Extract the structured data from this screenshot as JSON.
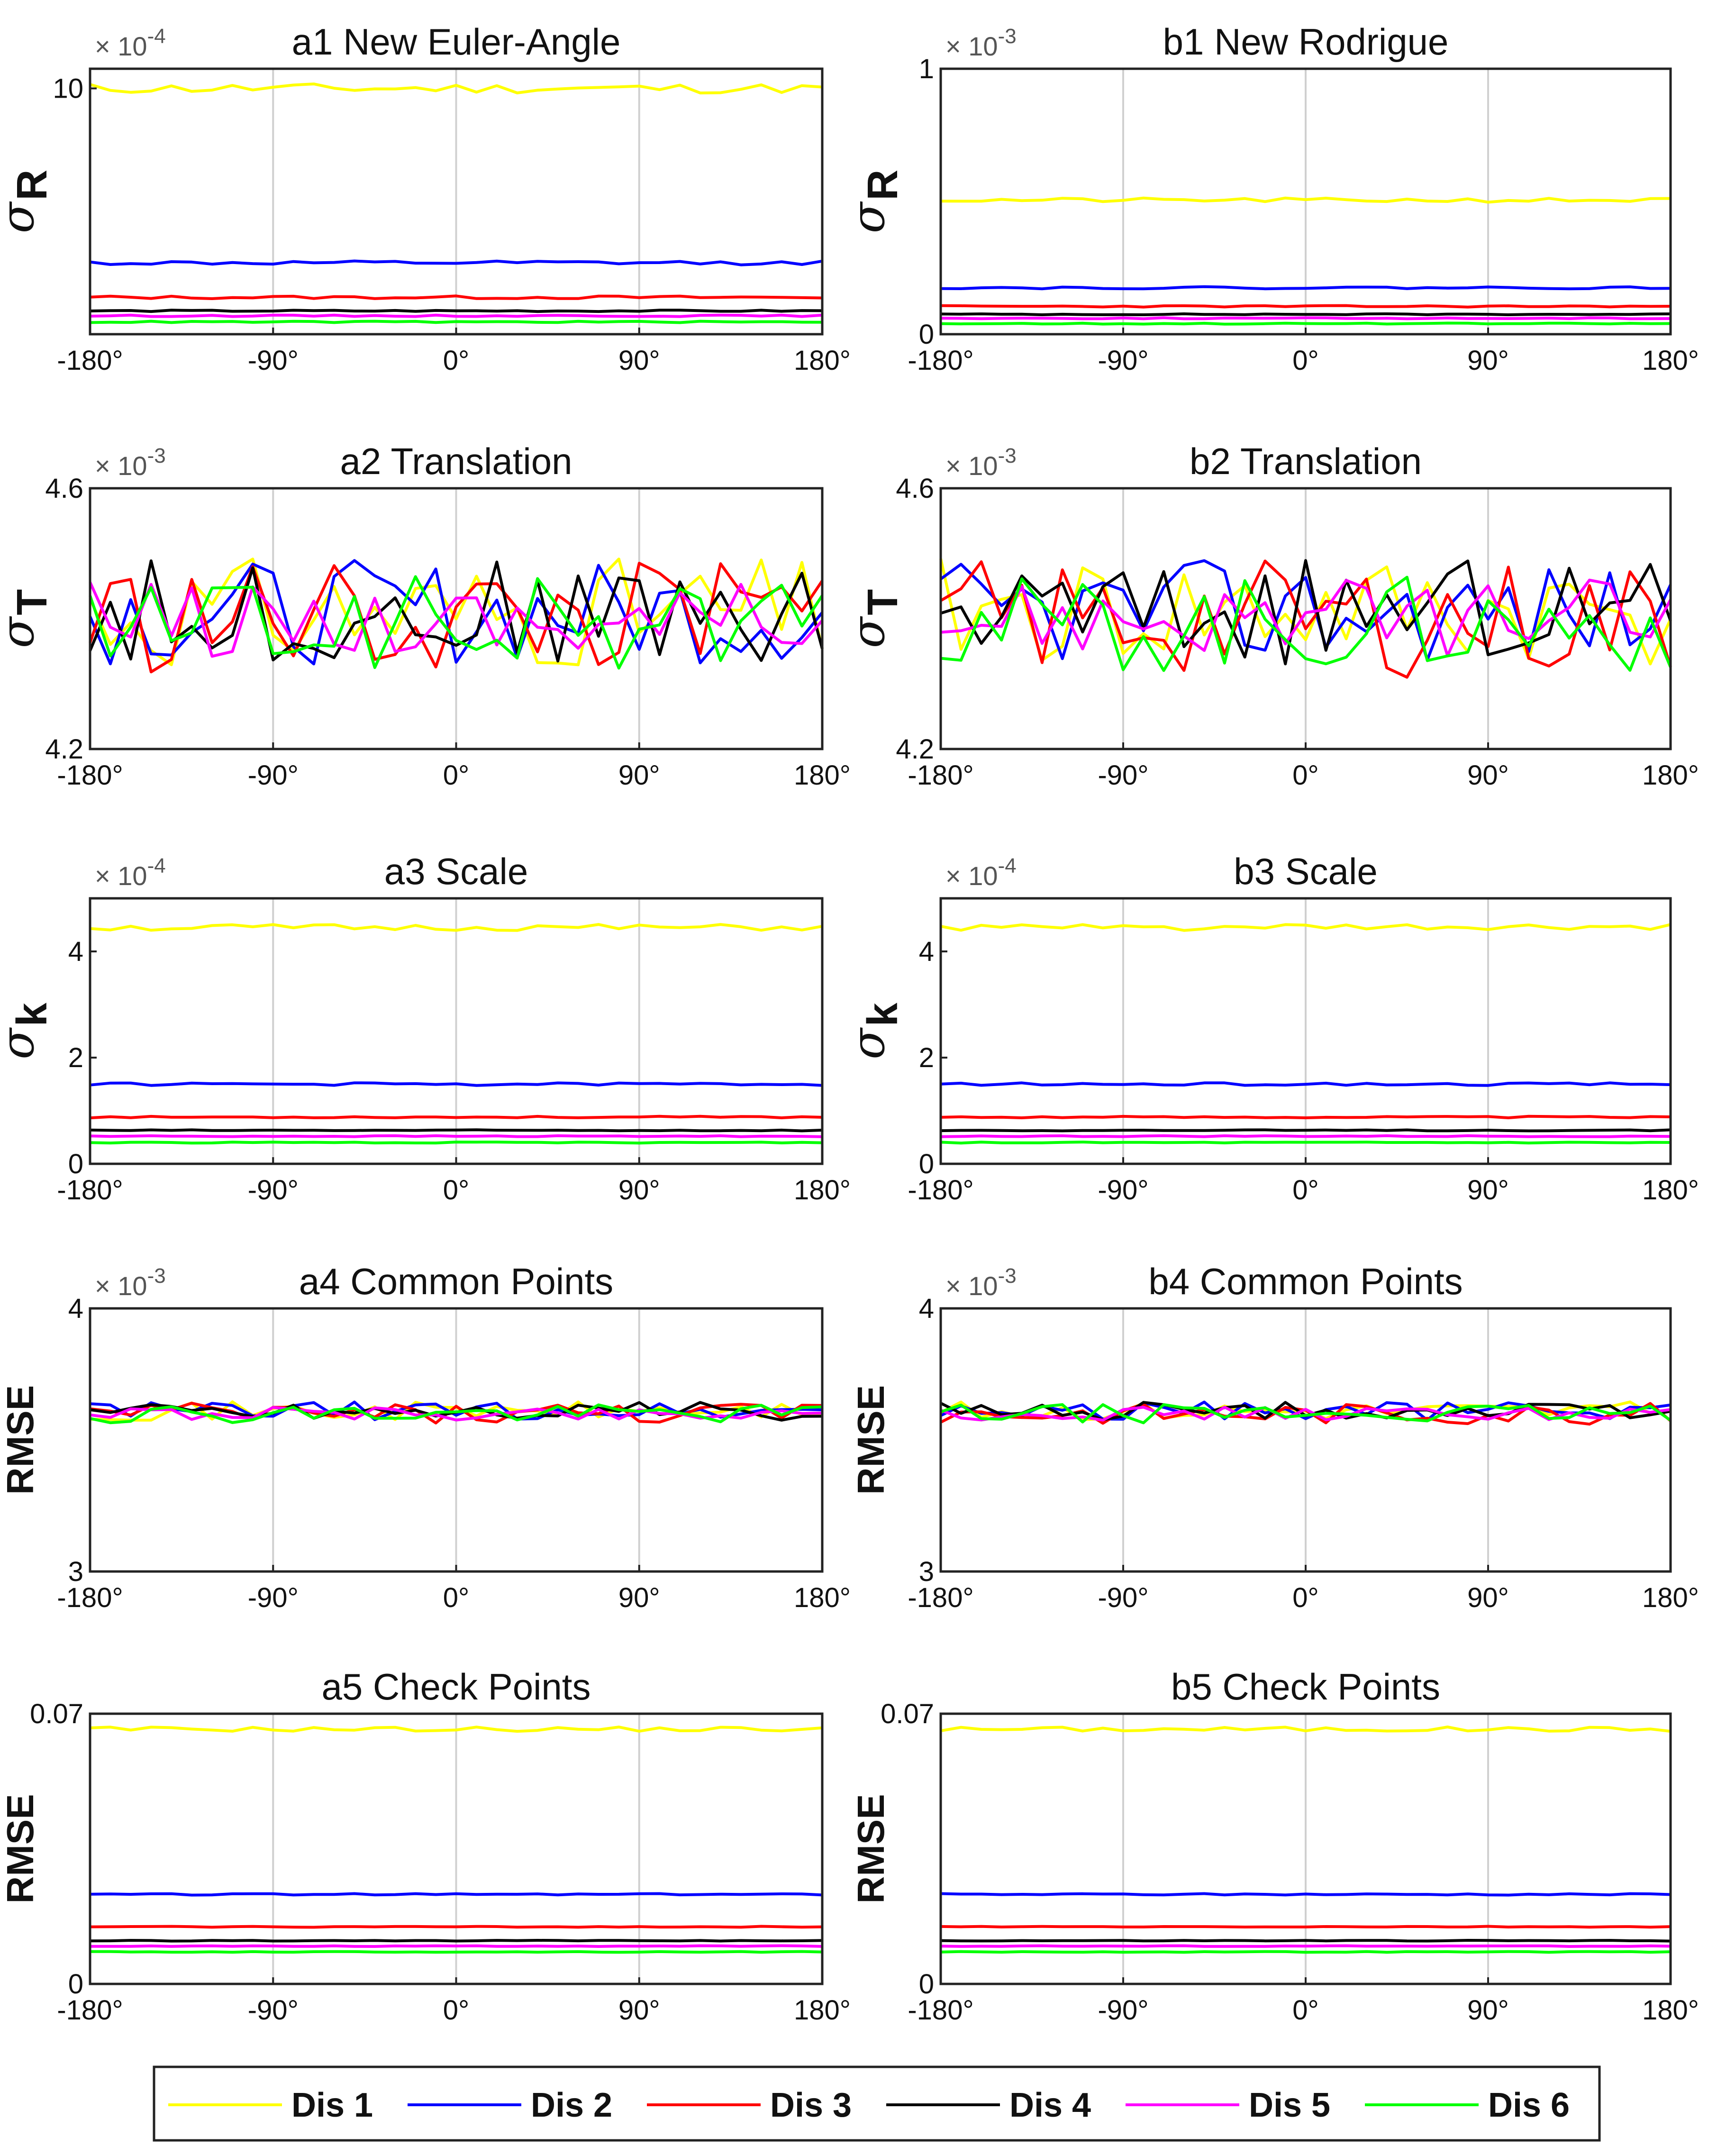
{
  "legend": {
    "items": [
      {
        "label": "Dis 1",
        "color": "#ffff00"
      },
      {
        "label": "Dis 2",
        "color": "#0000ff"
      },
      {
        "label": "Dis 3",
        "color": "#ff0000"
      },
      {
        "label": "Dis 4",
        "color": "#000000"
      },
      {
        "label": "Dis 5",
        "color": "#ff00ff"
      },
      {
        "label": "Dis 6",
        "color": "#00ff00"
      }
    ]
  },
  "chart_data": [
    {
      "id": "a1",
      "type": "line",
      "title": "a1 New Euler-Angle",
      "ylabel": {
        "symbol": "σ",
        "sub": "R"
      },
      "exponent": "× 10^-4",
      "x": [
        -180,
        180
      ],
      "xticks": [
        "-180°",
        "-90°",
        "0°",
        "90°",
        "180°"
      ],
      "ylim": [
        0,
        10.8
      ],
      "yticks": [
        {
          "value": 10,
          "label": "10"
        }
      ],
      "series": [
        {
          "name": "Dis 1",
          "level": 10.0,
          "noise": 0.2,
          "seed": 11
        },
        {
          "name": "Dis 2",
          "level": 2.9,
          "noise": 0.08,
          "seed": 12
        },
        {
          "name": "Dis 3",
          "level": 1.5,
          "noise": 0.06,
          "seed": 13
        },
        {
          "name": "Dis 4",
          "level": 0.95,
          "noise": 0.03,
          "seed": 14
        },
        {
          "name": "Dis 5",
          "level": 0.75,
          "noise": 0.03,
          "seed": 15
        },
        {
          "name": "Dis 6",
          "level": 0.5,
          "noise": 0.03,
          "seed": 16
        }
      ]
    },
    {
      "id": "b1",
      "type": "line",
      "title": "b1 New Rodrigue",
      "ylabel": {
        "symbol": "σ",
        "sub": "R"
      },
      "exponent": "× 10^-3",
      "x": [
        -180,
        180
      ],
      "xticks": [
        "-180°",
        "-90°",
        "0°",
        "90°",
        "180°"
      ],
      "ylim": [
        0,
        1
      ],
      "yticks": [
        {
          "value": 0,
          "label": "0"
        },
        {
          "value": 1,
          "label": "1"
        }
      ],
      "series": [
        {
          "name": "Dis 1",
          "level": 0.505,
          "noise": 0.008,
          "seed": 21
        },
        {
          "name": "Dis 2",
          "level": 0.175,
          "noise": 0.004,
          "seed": 22
        },
        {
          "name": "Dis 3",
          "level": 0.105,
          "noise": 0.003,
          "seed": 23
        },
        {
          "name": "Dis 4",
          "level": 0.075,
          "noise": 0.002,
          "seed": 24
        },
        {
          "name": "Dis 5",
          "level": 0.06,
          "noise": 0.002,
          "seed": 25
        },
        {
          "name": "Dis 6",
          "level": 0.04,
          "noise": 0.002,
          "seed": 26
        }
      ]
    },
    {
      "id": "a2",
      "type": "line",
      "title": "a2 Translation",
      "ylabel": {
        "symbol": "σ",
        "sub": "T"
      },
      "exponent": "× 10^-3",
      "x": [
        -180,
        180
      ],
      "xticks": [
        "-180°",
        "-90°",
        "0°",
        "90°",
        "180°"
      ],
      "ylim": [
        4.2,
        4.6
      ],
      "yticks": [
        {
          "value": 4.2,
          "label": "4.2"
        },
        {
          "value": 4.6,
          "label": "4.6"
        }
      ],
      "series": [
        {
          "name": "Dis 1",
          "level": 4.41,
          "noise": 0.085,
          "seed": 31
        },
        {
          "name": "Dis 2",
          "level": 4.41,
          "noise": 0.08,
          "seed": 32
        },
        {
          "name": "Dis 3",
          "level": 4.4,
          "noise": 0.09,
          "seed": 33
        },
        {
          "name": "Dis 4",
          "level": 4.41,
          "noise": 0.08,
          "seed": 34
        },
        {
          "name": "Dis 5",
          "level": 4.4,
          "noise": 0.06,
          "seed": 35
        },
        {
          "name": "Dis 6",
          "level": 4.39,
          "noise": 0.075,
          "seed": 36
        }
      ]
    },
    {
      "id": "b2",
      "type": "line",
      "title": "b2 Translation",
      "ylabel": {
        "symbol": "σ",
        "sub": "T"
      },
      "exponent": "× 10^-3",
      "x": [
        -180,
        180
      ],
      "xticks": [
        "-180°",
        "-90°",
        "0°",
        "90°",
        "180°"
      ],
      "ylim": [
        4.2,
        4.6
      ],
      "yticks": [
        {
          "value": 4.2,
          "label": "4.2"
        },
        {
          "value": 4.6,
          "label": "4.6"
        }
      ],
      "series": [
        {
          "name": "Dis 1",
          "level": 4.41,
          "noise": 0.085,
          "seed": 41
        },
        {
          "name": "Dis 2",
          "level": 4.41,
          "noise": 0.08,
          "seed": 42
        },
        {
          "name": "Dis 3",
          "level": 4.4,
          "noise": 0.09,
          "seed": 43
        },
        {
          "name": "Dis 4",
          "level": 4.41,
          "noise": 0.08,
          "seed": 44
        },
        {
          "name": "Dis 5",
          "level": 4.4,
          "noise": 0.06,
          "seed": 45
        },
        {
          "name": "Dis 6",
          "level": 4.39,
          "noise": 0.075,
          "seed": 46
        }
      ]
    },
    {
      "id": "a3",
      "type": "line",
      "title": "a3 Scale",
      "ylabel": {
        "symbol": "σ",
        "sub": "k"
      },
      "exponent": "× 10^-4",
      "x": [
        -180,
        180
      ],
      "xticks": [
        "-180°",
        "-90°",
        "0°",
        "90°",
        "180°"
      ],
      "ylim": [
        0,
        5
      ],
      "yticks": [
        {
          "value": 0,
          "label": "0"
        },
        {
          "value": 2,
          "label": "2"
        },
        {
          "value": 4,
          "label": "4"
        }
      ],
      "series": [
        {
          "name": "Dis 1",
          "level": 4.45,
          "noise": 0.06,
          "seed": 51
        },
        {
          "name": "Dis 2",
          "level": 1.5,
          "noise": 0.025,
          "seed": 52
        },
        {
          "name": "Dis 3",
          "level": 0.88,
          "noise": 0.015,
          "seed": 53
        },
        {
          "name": "Dis 4",
          "level": 0.63,
          "noise": 0.01,
          "seed": 54
        },
        {
          "name": "Dis 5",
          "level": 0.52,
          "noise": 0.01,
          "seed": 55
        },
        {
          "name": "Dis 6",
          "level": 0.4,
          "noise": 0.01,
          "seed": 56
        }
      ]
    },
    {
      "id": "b3",
      "type": "line",
      "title": "b3 Scale",
      "ylabel": {
        "symbol": "σ",
        "sub": "k"
      },
      "exponent": "× 10^-4",
      "x": [
        -180,
        180
      ],
      "xticks": [
        "-180°",
        "-90°",
        "0°",
        "90°",
        "180°"
      ],
      "ylim": [
        0,
        5
      ],
      "yticks": [
        {
          "value": 0,
          "label": "0"
        },
        {
          "value": 2,
          "label": "2"
        },
        {
          "value": 4,
          "label": "4"
        }
      ],
      "series": [
        {
          "name": "Dis 1",
          "level": 4.45,
          "noise": 0.06,
          "seed": 61
        },
        {
          "name": "Dis 2",
          "level": 1.5,
          "noise": 0.025,
          "seed": 62
        },
        {
          "name": "Dis 3",
          "level": 0.88,
          "noise": 0.015,
          "seed": 63
        },
        {
          "name": "Dis 4",
          "level": 0.63,
          "noise": 0.01,
          "seed": 64
        },
        {
          "name": "Dis 5",
          "level": 0.52,
          "noise": 0.01,
          "seed": 65
        },
        {
          "name": "Dis 6",
          "level": 0.4,
          "noise": 0.01,
          "seed": 66
        }
      ]
    },
    {
      "id": "a4",
      "type": "line",
      "title": "a4 Common  Points",
      "ylabel": {
        "text": "RMSE"
      },
      "exponent": "× 10^-3",
      "x": [
        -180,
        180
      ],
      "xticks": [
        "-180°",
        "-90°",
        "0°",
        "90°",
        "180°"
      ],
      "ylim": [
        3,
        4
      ],
      "yticks": [
        {
          "value": 3,
          "label": "3"
        },
        {
          "value": 4,
          "label": "4"
        }
      ],
      "series": [
        {
          "name": "Dis 1",
          "level": 3.61,
          "noise": 0.035,
          "seed": 71
        },
        {
          "name": "Dis 2",
          "level": 3.61,
          "noise": 0.035,
          "seed": 72
        },
        {
          "name": "Dis 3",
          "level": 3.6,
          "noise": 0.04,
          "seed": 73
        },
        {
          "name": "Dis 4",
          "level": 3.61,
          "noise": 0.035,
          "seed": 74
        },
        {
          "name": "Dis 5",
          "level": 3.6,
          "noise": 0.025,
          "seed": 75
        },
        {
          "name": "Dis 6",
          "level": 3.6,
          "noise": 0.035,
          "seed": 76
        }
      ]
    },
    {
      "id": "b4",
      "type": "line",
      "title": "b4 Common  Points",
      "ylabel": {
        "text": "RMSE"
      },
      "exponent": "× 10^-3",
      "x": [
        -180,
        180
      ],
      "xticks": [
        "-180°",
        "-90°",
        "0°",
        "90°",
        "180°"
      ],
      "ylim": [
        3,
        4
      ],
      "yticks": [
        {
          "value": 3,
          "label": "3"
        },
        {
          "value": 4,
          "label": "4"
        }
      ],
      "series": [
        {
          "name": "Dis 1",
          "level": 3.61,
          "noise": 0.035,
          "seed": 81
        },
        {
          "name": "Dis 2",
          "level": 3.61,
          "noise": 0.035,
          "seed": 82
        },
        {
          "name": "Dis 3",
          "level": 3.6,
          "noise": 0.04,
          "seed": 83
        },
        {
          "name": "Dis 4",
          "level": 3.61,
          "noise": 0.035,
          "seed": 84
        },
        {
          "name": "Dis 5",
          "level": 3.6,
          "noise": 0.025,
          "seed": 85
        },
        {
          "name": "Dis 6",
          "level": 3.6,
          "noise": 0.035,
          "seed": 86
        }
      ]
    },
    {
      "id": "a5",
      "type": "line",
      "title": "a5 Check Points",
      "ylabel": {
        "text": "RMSE"
      },
      "exponent": "",
      "x": [
        -180,
        180
      ],
      "xticks": [
        "-180°",
        "-90°",
        "0°",
        "90°",
        "180°"
      ],
      "ylim": [
        0,
        0.07
      ],
      "yticks": [
        {
          "value": 0,
          "label": "0"
        },
        {
          "value": 0.07,
          "label": "0.07"
        }
      ],
      "series": [
        {
          "name": "Dis 1",
          "level": 0.066,
          "noise": 0.0006,
          "seed": 91
        },
        {
          "name": "Dis 2",
          "level": 0.0232,
          "noise": 0.0002,
          "seed": 92
        },
        {
          "name": "Dis 3",
          "level": 0.0148,
          "noise": 0.00012,
          "seed": 93
        },
        {
          "name": "Dis 4",
          "level": 0.0112,
          "noise": 0.0001,
          "seed": 94
        },
        {
          "name": "Dis 5",
          "level": 0.0098,
          "noise": 0.0001,
          "seed": 95
        },
        {
          "name": "Dis 6",
          "level": 0.0083,
          "noise": 0.0001,
          "seed": 96
        }
      ]
    },
    {
      "id": "b5",
      "type": "line",
      "title": "b5 Check Points",
      "ylabel": {
        "text": "RMSE"
      },
      "exponent": "",
      "x": [
        -180,
        180
      ],
      "xticks": [
        "-180°",
        "-90°",
        "0°",
        "90°",
        "180°"
      ],
      "ylim": [
        0,
        0.07
      ],
      "yticks": [
        {
          "value": 0,
          "label": "0"
        },
        {
          "value": 0.07,
          "label": "0.07"
        }
      ],
      "series": [
        {
          "name": "Dis 1",
          "level": 0.066,
          "noise": 0.0006,
          "seed": 101
        },
        {
          "name": "Dis 2",
          "level": 0.0232,
          "noise": 0.0002,
          "seed": 102
        },
        {
          "name": "Dis 3",
          "level": 0.0148,
          "noise": 0.00012,
          "seed": 103
        },
        {
          "name": "Dis 4",
          "level": 0.0112,
          "noise": 0.0001,
          "seed": 104
        },
        {
          "name": "Dis 5",
          "level": 0.0098,
          "noise": 0.0001,
          "seed": 105
        },
        {
          "name": "Dis 6",
          "level": 0.0083,
          "noise": 0.0001,
          "seed": 106
        }
      ]
    }
  ]
}
